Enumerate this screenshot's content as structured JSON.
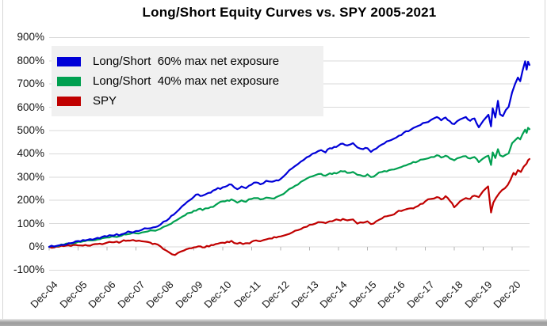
{
  "chart_data": {
    "type": "line",
    "title": "Long/Short Equity Curves vs. SPY 2005-2021",
    "xlabel": "",
    "ylabel": "",
    "ylim": [
      -100,
      900
    ],
    "y_tick_step": 100,
    "y_tick_labels": [
      "900%",
      "800%",
      "700%",
      "600%",
      "500%",
      "400%",
      "300%",
      "200%",
      "100%",
      "0%",
      "-100%"
    ],
    "x_tick_labels": [
      "Dec-04",
      "Dec-05",
      "Dec-06",
      "Dec-07",
      "Dec-08",
      "Dec-09",
      "Dec-10",
      "Dec-11",
      "Dec-12",
      "Dec-13",
      "Dec-14",
      "Dec-15",
      "Dec-16",
      "Dec-17",
      "Dec-18",
      "Dec-19",
      "Dec-20"
    ],
    "x_unit": "years since Dec-04, monthly-interval samples, data extends to mid-2021",
    "grid": true,
    "grid_color": "#d9d9d9",
    "axis_tick_color": "#b3b3b3",
    "legend_position": "top-left",
    "legend_bg": "#f0f0f0",
    "values_unit": "percent cumulative return",
    "series": [
      {
        "name": "Long/Short  60% max net exposure",
        "color": "#0000d8",
        "points": [
          [
            0,
            0
          ],
          [
            0.25,
            4
          ],
          [
            0.5,
            9
          ],
          [
            0.75,
            16
          ],
          [
            1,
            25
          ],
          [
            1.25,
            28
          ],
          [
            1.5,
            31
          ],
          [
            1.75,
            37
          ],
          [
            2,
            45
          ],
          [
            2.25,
            49
          ],
          [
            2.5,
            54
          ],
          [
            2.65,
            60
          ],
          [
            2.8,
            64
          ],
          [
            3,
            68
          ],
          [
            3.2,
            73
          ],
          [
            3.4,
            79
          ],
          [
            3.6,
            84
          ],
          [
            3.75,
            88
          ],
          [
            3.85,
            96
          ],
          [
            3.95,
            108
          ],
          [
            4.05,
            112
          ],
          [
            4.15,
            122
          ],
          [
            4.3,
            138
          ],
          [
            4.5,
            162
          ],
          [
            4.7,
            185
          ],
          [
            4.85,
            200
          ],
          [
            5,
            215
          ],
          [
            5.15,
            226
          ],
          [
            5.3,
            220
          ],
          [
            5.5,
            232
          ],
          [
            5.75,
            246
          ],
          [
            6,
            256
          ],
          [
            6.15,
            262
          ],
          [
            6.3,
            268
          ],
          [
            6.5,
            248
          ],
          [
            6.65,
            260
          ],
          [
            6.8,
            252
          ],
          [
            7,
            268
          ],
          [
            7.15,
            277
          ],
          [
            7.3,
            269
          ],
          [
            7.5,
            284
          ],
          [
            7.7,
            280
          ],
          [
            7.85,
            286
          ],
          [
            8,
            292
          ],
          [
            8.2,
            315
          ],
          [
            8.4,
            338
          ],
          [
            8.6,
            356
          ],
          [
            8.8,
            374
          ],
          [
            9,
            390
          ],
          [
            9.2,
            404
          ],
          [
            9.4,
            416
          ],
          [
            9.55,
            406
          ],
          [
            9.7,
            424
          ],
          [
            9.85,
            430
          ],
          [
            10,
            436
          ],
          [
            10.15,
            444
          ],
          [
            10.3,
            436
          ],
          [
            10.5,
            446
          ],
          [
            10.65,
            428
          ],
          [
            10.85,
            420
          ],
          [
            11,
            424
          ],
          [
            11.12,
            408
          ],
          [
            11.3,
            422
          ],
          [
            11.5,
            440
          ],
          [
            11.75,
            456
          ],
          [
            12,
            470
          ],
          [
            12.25,
            490
          ],
          [
            12.5,
            504
          ],
          [
            12.75,
            520
          ],
          [
            13,
            534
          ],
          [
            13.2,
            546
          ],
          [
            13.4,
            558
          ],
          [
            13.55,
            544
          ],
          [
            13.7,
            556
          ],
          [
            13.85,
            540
          ],
          [
            14,
            528
          ],
          [
            14.2,
            548
          ],
          [
            14.4,
            558
          ],
          [
            14.55,
            542
          ],
          [
            14.7,
            552
          ],
          [
            14.85,
            514
          ],
          [
            15,
            542
          ],
          [
            15.1,
            556
          ],
          [
            15.18,
            568
          ],
          [
            15.27,
            518
          ],
          [
            15.33,
            596
          ],
          [
            15.42,
            556
          ],
          [
            15.51,
            628
          ],
          [
            15.58,
            570
          ],
          [
            15.68,
            562
          ],
          [
            15.78,
            588
          ],
          [
            15.88,
            602
          ],
          [
            16,
            664
          ],
          [
            16.1,
            700
          ],
          [
            16.2,
            728
          ],
          [
            16.28,
            712
          ],
          [
            16.36,
            756
          ],
          [
            16.45,
            798
          ],
          [
            16.5,
            762
          ],
          [
            16.55,
            796
          ],
          [
            16.6,
            782
          ]
        ]
      },
      {
        "name": "Long/Short  40% max net exposure",
        "color": "#00a050",
        "points": [
          [
            0,
            0
          ],
          [
            0.25,
            3
          ],
          [
            0.5,
            8
          ],
          [
            0.75,
            14
          ],
          [
            1,
            22
          ],
          [
            1.25,
            25
          ],
          [
            1.5,
            28
          ],
          [
            1.75,
            33
          ],
          [
            2,
            40
          ],
          [
            2.25,
            44
          ],
          [
            2.5,
            48
          ],
          [
            2.65,
            53
          ],
          [
            2.8,
            56
          ],
          [
            3,
            58
          ],
          [
            3.2,
            62
          ],
          [
            3.4,
            66
          ],
          [
            3.6,
            70
          ],
          [
            3.75,
            73
          ],
          [
            3.85,
            78
          ],
          [
            3.95,
            86
          ],
          [
            4.05,
            90
          ],
          [
            4.15,
            96
          ],
          [
            4.3,
            108
          ],
          [
            4.5,
            122
          ],
          [
            4.7,
            136
          ],
          [
            4.85,
            146
          ],
          [
            5,
            155
          ],
          [
            5.15,
            162
          ],
          [
            5.3,
            158
          ],
          [
            5.5,
            166
          ],
          [
            5.75,
            180
          ],
          [
            6,
            196
          ],
          [
            6.15,
            200
          ],
          [
            6.3,
            204
          ],
          [
            6.5,
            190
          ],
          [
            6.65,
            200
          ],
          [
            6.8,
            194
          ],
          [
            7,
            206
          ],
          [
            7.15,
            210
          ],
          [
            7.3,
            204
          ],
          [
            7.5,
            212
          ],
          [
            7.7,
            208
          ],
          [
            7.85,
            214
          ],
          [
            8,
            222
          ],
          [
            8.2,
            238
          ],
          [
            8.4,
            254
          ],
          [
            8.6,
            268
          ],
          [
            8.8,
            286
          ],
          [
            9,
            300
          ],
          [
            9.2,
            308
          ],
          [
            9.4,
            314
          ],
          [
            9.55,
            306
          ],
          [
            9.7,
            316
          ],
          [
            9.85,
            318
          ],
          [
            10,
            320
          ],
          [
            10.15,
            324
          ],
          [
            10.3,
            318
          ],
          [
            10.5,
            322
          ],
          [
            10.65,
            310
          ],
          [
            10.85,
            304
          ],
          [
            11,
            312
          ],
          [
            11.12,
            300
          ],
          [
            11.3,
            310
          ],
          [
            11.5,
            322
          ],
          [
            11.75,
            330
          ],
          [
            12,
            336
          ],
          [
            12.25,
            348
          ],
          [
            12.5,
            358
          ],
          [
            12.75,
            368
          ],
          [
            13,
            378
          ],
          [
            13.2,
            386
          ],
          [
            13.4,
            394
          ],
          [
            13.55,
            384
          ],
          [
            13.7,
            392
          ],
          [
            13.85,
            380
          ],
          [
            14,
            372
          ],
          [
            14.2,
            384
          ],
          [
            14.4,
            390
          ],
          [
            14.55,
            380
          ],
          [
            14.7,
            386
          ],
          [
            14.85,
            364
          ],
          [
            15,
            380
          ],
          [
            15.1,
            388
          ],
          [
            15.18,
            392
          ],
          [
            15.27,
            352
          ],
          [
            15.33,
            406
          ],
          [
            15.42,
            382
          ],
          [
            15.51,
            420
          ],
          [
            15.58,
            394
          ],
          [
            15.68,
            388
          ],
          [
            15.78,
            396
          ],
          [
            15.88,
            402
          ],
          [
            16,
            446
          ],
          [
            16.1,
            458
          ],
          [
            16.2,
            470
          ],
          [
            16.28,
            462
          ],
          [
            16.36,
            484
          ],
          [
            16.45,
            504
          ],
          [
            16.5,
            490
          ],
          [
            16.55,
            512
          ],
          [
            16.6,
            506
          ]
        ]
      },
      {
        "name": "SPY",
        "color": "#c00000",
        "points": [
          [
            0,
            0
          ],
          [
            0.25,
            1
          ],
          [
            0.5,
            3
          ],
          [
            0.75,
            4
          ],
          [
            1,
            6
          ],
          [
            1.25,
            8
          ],
          [
            1.5,
            10
          ],
          [
            1.75,
            14
          ],
          [
            2,
            18
          ],
          [
            2.25,
            20
          ],
          [
            2.5,
            23
          ],
          [
            2.65,
            26
          ],
          [
            2.8,
            27
          ],
          [
            3,
            25
          ],
          [
            3.1,
            27
          ],
          [
            3.2,
            24
          ],
          [
            3.35,
            22
          ],
          [
            3.5,
            18
          ],
          [
            3.65,
            14
          ],
          [
            3.75,
            10
          ],
          [
            3.85,
            2
          ],
          [
            3.95,
            -10
          ],
          [
            4.05,
            -16
          ],
          [
            4.15,
            -24
          ],
          [
            4.25,
            -32
          ],
          [
            4.35,
            -35
          ],
          [
            4.45,
            -26
          ],
          [
            4.55,
            -20
          ],
          [
            4.65,
            -16
          ],
          [
            4.75,
            -10
          ],
          [
            4.85,
            -6
          ],
          [
            5,
            -2
          ],
          [
            5.15,
            2
          ],
          [
            5.3,
            -2
          ],
          [
            5.45,
            4
          ],
          [
            5.6,
            8
          ],
          [
            5.75,
            12
          ],
          [
            6,
            18
          ],
          [
            6.15,
            22
          ],
          [
            6.3,
            26
          ],
          [
            6.5,
            14
          ],
          [
            6.6,
            18
          ],
          [
            6.7,
            12
          ],
          [
            6.85,
            16
          ],
          [
            7,
            22
          ],
          [
            7.15,
            28
          ],
          [
            7.3,
            24
          ],
          [
            7.5,
            32
          ],
          [
            7.7,
            36
          ],
          [
            7.85,
            40
          ],
          [
            8,
            45
          ],
          [
            8.2,
            52
          ],
          [
            8.4,
            62
          ],
          [
            8.6,
            72
          ],
          [
            8.8,
            84
          ],
          [
            9,
            95
          ],
          [
            9.2,
            100
          ],
          [
            9.4,
            106
          ],
          [
            9.55,
            102
          ],
          [
            9.7,
            110
          ],
          [
            9.85,
            114
          ],
          [
            10,
            116
          ],
          [
            10.15,
            120
          ],
          [
            10.3,
            114
          ],
          [
            10.5,
            118
          ],
          [
            10.65,
            100
          ],
          [
            10.85,
            104
          ],
          [
            11,
            110
          ],
          [
            11.12,
            98
          ],
          [
            11.3,
            110
          ],
          [
            11.5,
            122
          ],
          [
            11.75,
            134
          ],
          [
            12,
            148
          ],
          [
            12.25,
            158
          ],
          [
            12.5,
            166
          ],
          [
            12.75,
            176
          ],
          [
            13,
            196
          ],
          [
            13.2,
            206
          ],
          [
            13.4,
            214
          ],
          [
            13.55,
            204
          ],
          [
            13.7,
            218
          ],
          [
            13.85,
            198
          ],
          [
            14,
            170
          ],
          [
            14.2,
            196
          ],
          [
            14.4,
            210
          ],
          [
            14.55,
            206
          ],
          [
            14.7,
            220
          ],
          [
            14.85,
            214
          ],
          [
            15,
            240
          ],
          [
            15.1,
            252
          ],
          [
            15.17,
            260
          ],
          [
            15.27,
            148
          ],
          [
            15.35,
            190
          ],
          [
            15.45,
            212
          ],
          [
            15.55,
            230
          ],
          [
            15.65,
            244
          ],
          [
            15.75,
            252
          ],
          [
            15.85,
            266
          ],
          [
            15.95,
            290
          ],
          [
            16,
            305
          ],
          [
            16.05,
            318
          ],
          [
            16.12,
            310
          ],
          [
            16.2,
            330
          ],
          [
            16.3,
            322
          ],
          [
            16.4,
            345
          ],
          [
            16.5,
            358
          ],
          [
            16.55,
            372
          ],
          [
            16.6,
            378
          ]
        ]
      }
    ]
  },
  "legend": {
    "items": [
      {
        "label": "Long/Short  60% max net exposure",
        "color": "#0000d8"
      },
      {
        "label": "Long/Short  40% max net exposure",
        "color": "#00a050"
      },
      {
        "label": "SPY",
        "color": "#c00000"
      }
    ]
  },
  "window": {
    "bottom_edge_color": "#9d9d9d",
    "border_color": "#d6d6d6"
  }
}
